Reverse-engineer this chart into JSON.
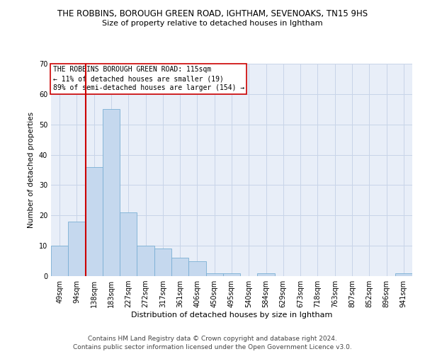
{
  "title1": "THE ROBBINS, BOROUGH GREEN ROAD, IGHTHAM, SEVENOAKS, TN15 9HS",
  "title2": "Size of property relative to detached houses in Ightham",
  "xlabel": "Distribution of detached houses by size in Ightham",
  "ylabel": "Number of detached properties",
  "categories": [
    "49sqm",
    "94sqm",
    "138sqm",
    "183sqm",
    "227sqm",
    "272sqm",
    "317sqm",
    "361sqm",
    "406sqm",
    "450sqm",
    "495sqm",
    "540sqm",
    "584sqm",
    "629sqm",
    "673sqm",
    "718sqm",
    "763sqm",
    "807sqm",
    "852sqm",
    "896sqm",
    "941sqm"
  ],
  "values": [
    10,
    18,
    36,
    55,
    21,
    10,
    9,
    6,
    5,
    1,
    1,
    0,
    1,
    0,
    0,
    0,
    0,
    0,
    0,
    0,
    1
  ],
  "bar_color": "#c5d8ee",
  "bar_edge_color": "#7aafd4",
  "grid_color": "#c8d4e8",
  "background_color": "#e8eef8",
  "vline_x": 1.5,
  "vline_color": "#cc0000",
  "annotation_text": "THE ROBBINS BOROUGH GREEN ROAD: 115sqm\n← 11% of detached houses are smaller (19)\n89% of semi-detached houses are larger (154) →",
  "annotation_box_color": "#ffffff",
  "annotation_box_edge": "#cc0000",
  "ylim": [
    0,
    70
  ],
  "yticks": [
    0,
    10,
    20,
    30,
    40,
    50,
    60,
    70
  ],
  "footer1": "Contains HM Land Registry data © Crown copyright and database right 2024.",
  "footer2": "Contains public sector information licensed under the Open Government Licence v3.0.",
  "title1_fontsize": 8.5,
  "title2_fontsize": 8,
  "xlabel_fontsize": 8,
  "ylabel_fontsize": 7.5,
  "tick_fontsize": 7,
  "annotation_fontsize": 7,
  "footer_fontsize": 6.5
}
